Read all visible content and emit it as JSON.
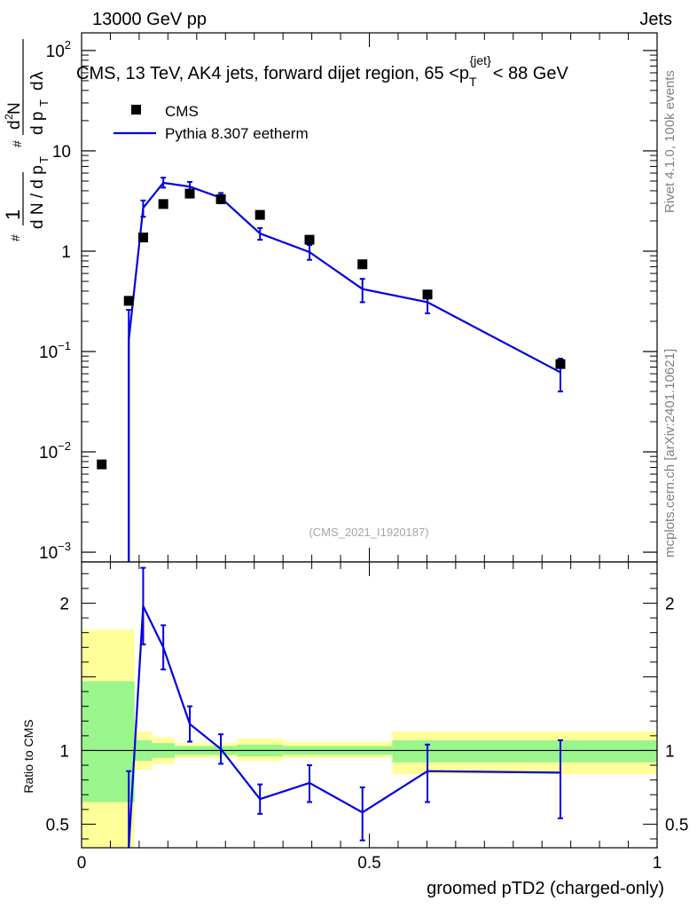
{
  "header": {
    "left": "13000 GeV pp",
    "right": "Jets"
  },
  "title": {
    "main": "CMS, 13 TeV, AK4 jets, forward dijet region, 65 <p",
    "sub": "T",
    "sup": "{jet}",
    "tail": "< 88 GeV"
  },
  "sidebar": {
    "rivet": "Rivet 4.1.0,  100k events",
    "source": "mcplots.cern.ch [arXiv:2401.10621]"
  },
  "watermark": "(CMS_2021_I1920187)",
  "chart_data": [
    {
      "type": "scatter",
      "panel": "main",
      "yscale": "log",
      "xlim": [
        0,
        1
      ],
      "ylim": [
        0.0008,
        150
      ],
      "ylabel": "1/(dN/dpT) d²N/(dpT dλ)",
      "yticks": [
        {
          "value": 0.001,
          "mant": "10",
          "exp": "−3"
        },
        {
          "value": 0.01,
          "mant": "10",
          "exp": "−2"
        },
        {
          "value": 0.1,
          "mant": "10",
          "exp": "−1"
        },
        {
          "value": 1,
          "mant": "1",
          "exp": ""
        },
        {
          "value": 10,
          "mant": "10",
          "exp": ""
        },
        {
          "value": 100,
          "mant": "10",
          "exp": "2"
        }
      ],
      "legend": {
        "position": "top-left",
        "entries": [
          {
            "label": "CMS",
            "style": "marker",
            "color": "#000000"
          },
          {
            "label": "Pythia 8.307 eetherm",
            "style": "line",
            "color": "#0000e0"
          }
        ]
      },
      "series": [
        {
          "name": "CMS",
          "color": "#000000",
          "points": [
            {
              "x": 0.035,
              "y": 0.0075
            },
            {
              "x": 0.082,
              "y": 0.32
            },
            {
              "x": 0.107,
              "y": 1.37
            },
            {
              "x": 0.142,
              "y": 2.95
            },
            {
              "x": 0.188,
              "y": 3.75
            },
            {
              "x": 0.242,
              "y": 3.3
            },
            {
              "x": 0.31,
              "y": 2.3
            },
            {
              "x": 0.396,
              "y": 1.3
            },
            {
              "x": 0.488,
              "y": 0.74
            },
            {
              "x": 0.601,
              "y": 0.37
            },
            {
              "x": 0.832,
              "y": 0.075
            }
          ]
        },
        {
          "name": "Pythia 8.307 eetherm",
          "color": "#0000e0",
          "points": [
            {
              "x": 0.082,
              "y": 0.13,
              "lo": 0.0001,
              "hi": 0.26
            },
            {
              "x": 0.107,
              "y": 2.7,
              "lo": 2.2,
              "hi": 3.2
            },
            {
              "x": 0.142,
              "y": 4.8,
              "lo": 4.3,
              "hi": 5.4
            },
            {
              "x": 0.188,
              "y": 4.4,
              "lo": 3.9,
              "hi": 4.9
            },
            {
              "x": 0.242,
              "y": 3.4,
              "lo": 3.0,
              "hi": 3.8
            },
            {
              "x": 0.31,
              "y": 1.5,
              "lo": 1.3,
              "hi": 1.7
            },
            {
              "x": 0.396,
              "y": 0.98,
              "lo": 0.82,
              "hi": 1.15
            },
            {
              "x": 0.488,
              "y": 0.42,
              "lo": 0.31,
              "hi": 0.53
            },
            {
              "x": 0.601,
              "y": 0.31,
              "lo": 0.24,
              "hi": 0.38
            },
            {
              "x": 0.832,
              "y": 0.062,
              "lo": 0.04,
              "hi": 0.085
            }
          ]
        }
      ]
    },
    {
      "type": "line",
      "panel": "ratio",
      "xlim": [
        0,
        1
      ],
      "ylim": [
        0.34,
        2.28
      ],
      "xlabel": "groomed pTD2 (charged-only)",
      "ylabel": "Ratio to CMS",
      "xticks": [
        {
          "value": 0,
          "label": "0"
        },
        {
          "value": 0.5,
          "label": "0.5"
        },
        {
          "value": 1,
          "label": "1"
        }
      ],
      "yticks": [
        {
          "value": 0.5,
          "label": "0.5"
        },
        {
          "value": 1,
          "label": "1"
        },
        {
          "value": 2,
          "label": "2"
        }
      ],
      "reference_line": 1,
      "bands": [
        {
          "x0": 0.0,
          "x1": 0.092,
          "y1lo": 0.65,
          "y1hi": 1.47,
          "y2lo": 0.2,
          "y2hi": 1.82
        },
        {
          "x0": 0.092,
          "x1": 0.122,
          "y1lo": 0.93,
          "y1hi": 1.07,
          "y2lo": 0.87,
          "y2hi": 1.13
        },
        {
          "x0": 0.122,
          "x1": 0.162,
          "y1lo": 0.95,
          "y1hi": 1.05,
          "y2lo": 0.91,
          "y2hi": 1.09
        },
        {
          "x0": 0.162,
          "x1": 0.215,
          "y1lo": 0.97,
          "y1hi": 1.03,
          "y2lo": 0.95,
          "y2hi": 1.05
        },
        {
          "x0": 0.215,
          "x1": 0.27,
          "y1lo": 0.97,
          "y1hi": 1.03,
          "y2lo": 0.95,
          "y2hi": 1.05
        },
        {
          "x0": 0.27,
          "x1": 0.35,
          "y1lo": 0.96,
          "y1hi": 1.04,
          "y2lo": 0.93,
          "y2hi": 1.08
        },
        {
          "x0": 0.35,
          "x1": 0.44,
          "y1lo": 0.97,
          "y1hi": 1.03,
          "y2lo": 0.95,
          "y2hi": 1.06
        },
        {
          "x0": 0.44,
          "x1": 0.54,
          "y1lo": 0.97,
          "y1hi": 1.03,
          "y2lo": 0.95,
          "y2hi": 1.06
        },
        {
          "x0": 0.54,
          "x1": 1.0,
          "y1lo": 0.92,
          "y1hi": 1.07,
          "y2lo": 0.84,
          "y2hi": 1.13
        }
      ],
      "series": [
        {
          "name": "Pythia 8.307 eetherm / CMS",
          "color": "#0000e0",
          "points": [
            {
              "x": 0.082,
              "y": 0.34,
              "lo": 0.3,
              "hi": 0.86
            },
            {
              "x": 0.107,
              "y": 1.98,
              "lo": 1.72,
              "hi": 2.24
            },
            {
              "x": 0.142,
              "y": 1.7,
              "lo": 1.55,
              "hi": 1.85
            },
            {
              "x": 0.188,
              "y": 1.18,
              "lo": 1.06,
              "hi": 1.3
            },
            {
              "x": 0.242,
              "y": 1.01,
              "lo": 0.91,
              "hi": 1.11
            },
            {
              "x": 0.31,
              "y": 0.67,
              "lo": 0.57,
              "hi": 0.77
            },
            {
              "x": 0.396,
              "y": 0.78,
              "lo": 0.65,
              "hi": 0.9
            },
            {
              "x": 0.488,
              "y": 0.58,
              "lo": 0.39,
              "hi": 0.75
            },
            {
              "x": 0.601,
              "y": 0.86,
              "lo": 0.65,
              "hi": 1.04
            },
            {
              "x": 0.832,
              "y": 0.85,
              "lo": 0.54,
              "hi": 1.07
            }
          ]
        }
      ]
    }
  ],
  "colors": {
    "band_inner": "#99f58c",
    "band_outer": "#ffff99",
    "data": "#000000",
    "mc": "#0000e0",
    "side_text": "#808080"
  }
}
